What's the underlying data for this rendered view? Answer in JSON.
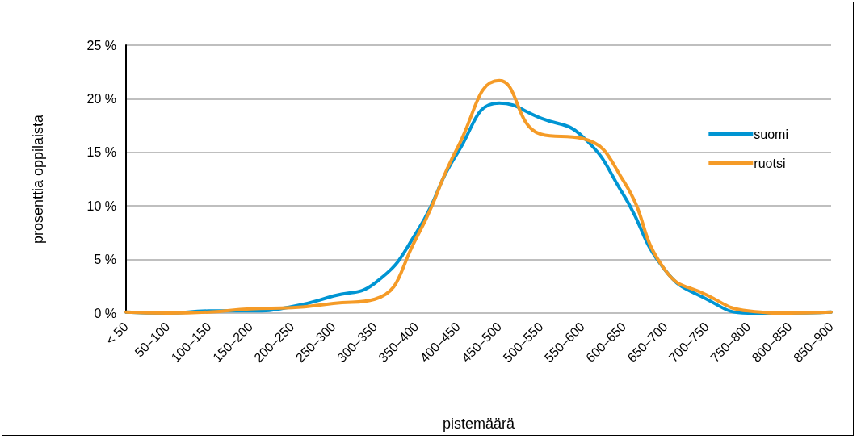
{
  "chart_data": {
    "type": "line",
    "xlabel": "pistemäärä",
    "ylabel": "prosenttia oppilaista",
    "categories": [
      "< 50",
      "50–100",
      "100–150",
      "150–200",
      "200–250",
      "250–300",
      "300–350",
      "350–400",
      "400–450",
      "450–500",
      "500–550",
      "550–600",
      "600–650",
      "650–700",
      "700–750",
      "750–800",
      "800–850",
      "850–900"
    ],
    "series": [
      {
        "name": "suomi",
        "color": "#0095d3",
        "values": [
          0.1,
          0,
          0.2,
          0.2,
          0.6,
          1.6,
          2.8,
          7.5,
          15,
          19.6,
          18.2,
          16.5,
          11,
          4,
          1.3,
          0,
          0,
          0.1
        ]
      },
      {
        "name": "ruotsi",
        "color": "#f59b27",
        "values": [
          0.1,
          0,
          0.1,
          0.4,
          0.5,
          0.9,
          1.3,
          7,
          15.5,
          21.7,
          16.7,
          16.3,
          12.3,
          4,
          1.7,
          0.2,
          0,
          0.1
        ]
      }
    ],
    "ylim": [
      0,
      25
    ],
    "yticks": [
      {
        "value": 0,
        "label": "0 %"
      },
      {
        "value": 5,
        "label": "5 %"
      },
      {
        "value": 10,
        "label": "10 %"
      },
      {
        "value": 15,
        "label": "15 %"
      },
      {
        "value": 20,
        "label": "20 %"
      },
      {
        "value": 25,
        "label": "25 %"
      }
    ],
    "grid": "y",
    "legend": "top right",
    "marker": "none",
    "line_style": "solid"
  }
}
